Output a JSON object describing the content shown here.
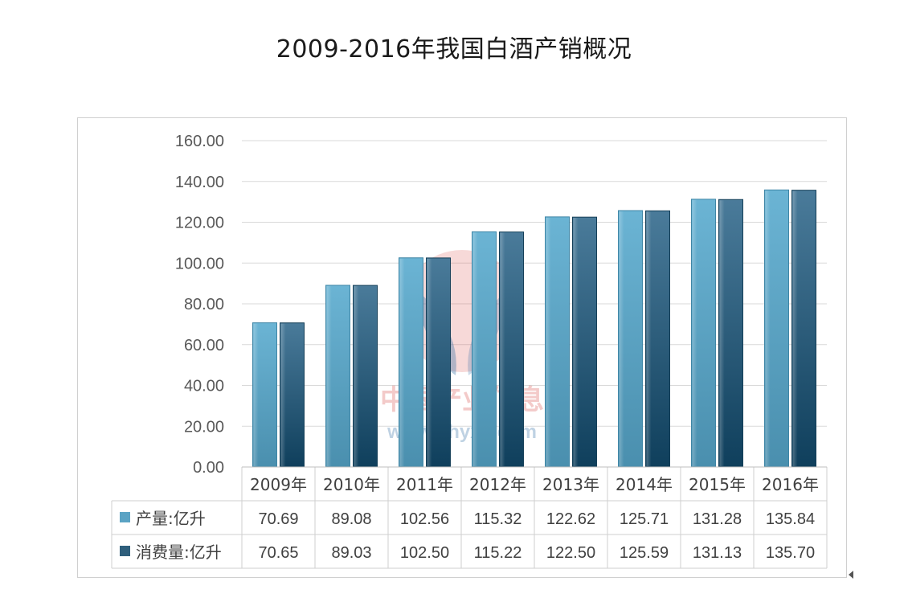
{
  "chart_data": {
    "type": "bar",
    "title": "2009-2016年我国白酒产销概况",
    "categories": [
      "2009年",
      "2010年",
      "2011年",
      "2012年",
      "2013年",
      "2014年",
      "2015年",
      "2016年"
    ],
    "series": [
      {
        "name": "产量:亿升",
        "values": [
          70.69,
          89.08,
          102.56,
          115.32,
          122.62,
          125.71,
          131.28,
          135.84
        ],
        "labels": [
          "70.69",
          "89.08",
          "102.56",
          "115.32",
          "122.62",
          "125.71",
          "131.28",
          "135.84"
        ],
        "color": "#5ba3c4"
      },
      {
        "name": "消费量:亿升",
        "values": [
          70.65,
          89.03,
          102.5,
          115.22,
          122.5,
          125.59,
          131.13,
          135.7
        ],
        "labels": [
          "70.65",
          "89.03",
          "102.50",
          "115.22",
          "122.50",
          "125.59",
          "131.13",
          "135.70"
        ],
        "color": "#2f5f7c"
      }
    ],
    "ylim": [
      0,
      160
    ],
    "yticks": [
      "0.00",
      "20.00",
      "40.00",
      "60.00",
      "80.00",
      "100.00",
      "120.00",
      "140.00",
      "160.00"
    ],
    "grid": true,
    "legend": "data-table"
  },
  "watermark": {
    "name": "中国产业信息",
    "url": "www.chyxx.com"
  }
}
